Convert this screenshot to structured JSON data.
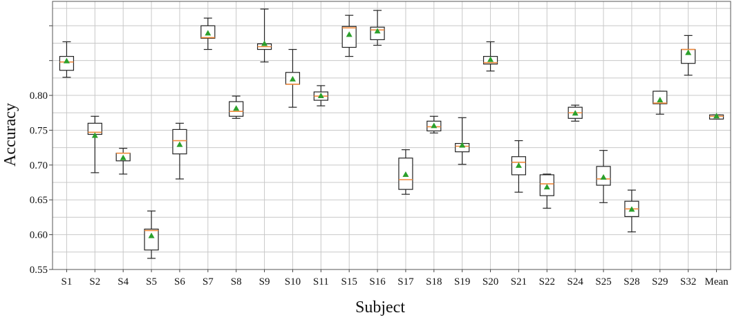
{
  "chart_data": {
    "type": "box",
    "xlabel": "Subject",
    "ylabel": "Accuracy",
    "ylim": [
      0.55,
      0.935
    ],
    "yticks": [
      0.55,
      0.6,
      0.65,
      0.7,
      0.75,
      0.8
    ],
    "ytick_labels": [
      "0.55",
      "0.60",
      "0.65",
      "0.70",
      "0.75",
      "0.80"
    ],
    "grid": true,
    "median_color": "#f08a3c",
    "mean_color": "#2ca02c",
    "categories": [
      "S1",
      "S2",
      "S4",
      "S5",
      "S6",
      "S7",
      "S8",
      "S9",
      "S10",
      "S11",
      "S15",
      "S16",
      "S17",
      "S18",
      "S19",
      "S20",
      "S21",
      "S22",
      "S24",
      "S25",
      "S28",
      "S29",
      "S32",
      "Mean"
    ],
    "boxes": [
      {
        "name": "S1",
        "whislo": 0.826,
        "q1": 0.836,
        "med": 0.848,
        "q3": 0.856,
        "whishi": 0.877,
        "mean": 0.849
      },
      {
        "name": "S2",
        "whislo": 0.689,
        "q1": 0.744,
        "med": 0.747,
        "q3": 0.76,
        "whishi": 0.77,
        "mean": 0.742
      },
      {
        "name": "S4",
        "whislo": 0.687,
        "q1": 0.706,
        "med": 0.717,
        "q3": 0.717,
        "whishi": 0.724,
        "mean": 0.71
      },
      {
        "name": "S5",
        "whislo": 0.566,
        "q1": 0.578,
        "med": 0.606,
        "q3": 0.608,
        "whishi": 0.634,
        "mean": 0.598
      },
      {
        "name": "S6",
        "whislo": 0.68,
        "q1": 0.716,
        "med": 0.735,
        "q3": 0.751,
        "whishi": 0.76,
        "mean": 0.729
      },
      {
        "name": "S7",
        "whislo": 0.866,
        "q1": 0.882,
        "med": 0.883,
        "q3": 0.9,
        "whishi": 0.911,
        "mean": 0.889
      },
      {
        "name": "S8",
        "whislo": 0.767,
        "q1": 0.77,
        "med": 0.777,
        "q3": 0.791,
        "whishi": 0.799,
        "mean": 0.781
      },
      {
        "name": "S9",
        "whislo": 0.848,
        "q1": 0.866,
        "med": 0.87,
        "q3": 0.874,
        "whishi": 0.924,
        "mean": 0.874
      },
      {
        "name": "S10",
        "whislo": 0.783,
        "q1": 0.816,
        "med": 0.816,
        "q3": 0.833,
        "whishi": 0.866,
        "mean": 0.823
      },
      {
        "name": "S11",
        "whislo": 0.785,
        "q1": 0.793,
        "med": 0.799,
        "q3": 0.805,
        "whishi": 0.814,
        "mean": 0.799
      },
      {
        "name": "S15",
        "whislo": 0.856,
        "q1": 0.869,
        "med": 0.897,
        "q3": 0.899,
        "whishi": 0.915,
        "mean": 0.887
      },
      {
        "name": "S16",
        "whislo": 0.872,
        "q1": 0.88,
        "med": 0.894,
        "q3": 0.898,
        "whishi": 0.922,
        "mean": 0.892
      },
      {
        "name": "S17",
        "whislo": 0.658,
        "q1": 0.665,
        "med": 0.679,
        "q3": 0.71,
        "whishi": 0.722,
        "mean": 0.686
      },
      {
        "name": "S18",
        "whislo": 0.746,
        "q1": 0.749,
        "med": 0.755,
        "q3": 0.763,
        "whishi": 0.77,
        "mean": 0.756
      },
      {
        "name": "S19",
        "whislo": 0.701,
        "q1": 0.719,
        "med": 0.727,
        "q3": 0.731,
        "whishi": 0.768,
        "mean": 0.728
      },
      {
        "name": "S20",
        "whislo": 0.835,
        "q1": 0.845,
        "med": 0.847,
        "q3": 0.856,
        "whishi": 0.877,
        "mean": 0.851
      },
      {
        "name": "S21",
        "whislo": 0.661,
        "q1": 0.686,
        "med": 0.704,
        "q3": 0.712,
        "whishi": 0.735,
        "mean": 0.699
      },
      {
        "name": "S22",
        "whislo": 0.638,
        "q1": 0.656,
        "med": 0.673,
        "q3": 0.686,
        "whishi": 0.687,
        "mean": 0.668
      },
      {
        "name": "S24",
        "whislo": 0.763,
        "q1": 0.767,
        "med": 0.775,
        "q3": 0.783,
        "whishi": 0.786,
        "mean": 0.774
      },
      {
        "name": "S25",
        "whislo": 0.646,
        "q1": 0.671,
        "med": 0.68,
        "q3": 0.698,
        "whishi": 0.721,
        "mean": 0.682
      },
      {
        "name": "S28",
        "whislo": 0.604,
        "q1": 0.626,
        "med": 0.637,
        "q3": 0.648,
        "whishi": 0.664,
        "mean": 0.636
      },
      {
        "name": "S29",
        "whislo": 0.773,
        "q1": 0.788,
        "med": 0.789,
        "q3": 0.806,
        "whishi": 0.806,
        "mean": 0.793
      },
      {
        "name": "S32",
        "whislo": 0.829,
        "q1": 0.846,
        "med": 0.866,
        "q3": 0.866,
        "whishi": 0.886,
        "mean": 0.861
      },
      {
        "name": "Mean",
        "whislo": 0.766,
        "q1": 0.766,
        "med": 0.77,
        "q3": 0.772,
        "whishi": 0.772,
        "mean": 0.77
      }
    ]
  }
}
